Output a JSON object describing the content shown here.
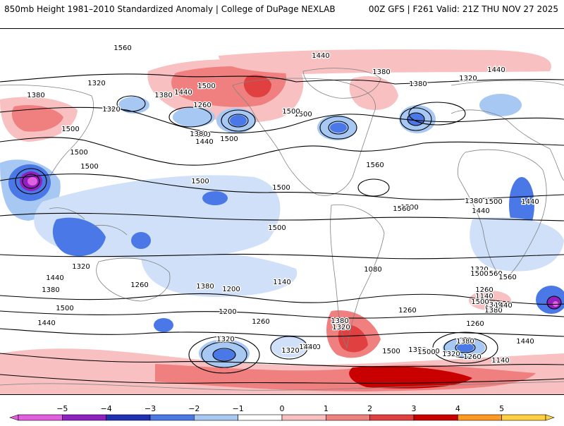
{
  "header": {
    "title": "850mb Height 1981–2010 Standardized Anomaly | College of DuPage NEXLAB",
    "run_info": "00Z GFS | F261 Valid: 21Z THU NOV 27 2025"
  },
  "colorbar": {
    "ticks": [
      "−5",
      "−4",
      "−3",
      "−2",
      "−1",
      "0",
      "1",
      "2",
      "3",
      "4",
      "5"
    ],
    "colors": [
      "#e060e0",
      "#9020c0",
      "#2030b0",
      "#4a78e6",
      "#a8c8f4",
      "#ffffff",
      "#f8c0c0",
      "#f08080",
      "#e04040",
      "#c80000",
      "#ff9a20",
      "#ffd040"
    ]
  },
  "contour_labels": [
    "1380",
    "1440",
    "1320",
    "1500",
    "1380",
    "1260",
    "1320",
    "1440",
    "1380",
    "1500",
    "1380",
    "1320",
    "1440",
    "1380",
    "1260",
    "1380",
    "1440",
    "1500",
    "1500",
    "1560",
    "1500",
    "1500",
    "1500",
    "1500",
    "1500",
    "1500",
    "1500",
    "1500",
    "1560",
    "1440",
    "1440",
    "1380",
    "1320",
    "1260",
    "1140",
    "1380",
    "1320",
    "1440",
    "1380",
    "1500",
    "1440",
    "1260",
    "1380",
    "1200",
    "1140",
    "1080",
    "1200",
    "1260",
    "1320",
    "1380",
    "1320",
    "1380",
    "1440",
    "1320",
    "1260",
    "1380",
    "1500",
    "1440",
    "1380",
    "1320",
    "1260",
    "1140",
    "1380",
    "1320",
    "1260",
    "1440",
    "1560",
    "1500",
    "1500",
    "1500",
    "1560",
    "1560"
  ],
  "color_scale": {
    "neg_strong": "#4a78e6",
    "neg_mid": "#a8c8f4",
    "neg_light": "#cfe0f8",
    "neg_extreme": "#9020c0",
    "neg_peak": "#e060e0",
    "pos_light": "#f8c0c0",
    "pos_mid": "#f08080",
    "pos_strong": "#e04040",
    "pos_peak": "#c80000"
  }
}
